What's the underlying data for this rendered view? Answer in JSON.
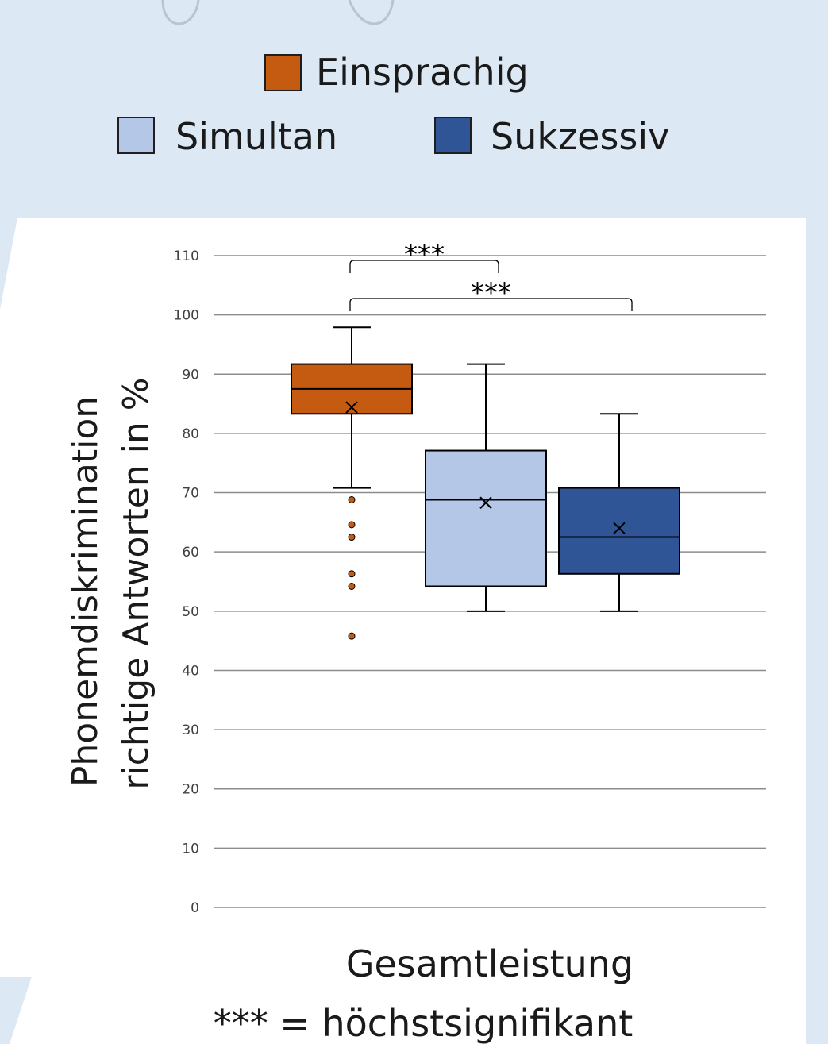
{
  "chart_data": {
    "type": "boxplot",
    "title": "",
    "xlabel": "Gesamtleistung",
    "ylabel_lines": [
      "Phonemdiskrimination",
      "richtige Antworten in %"
    ],
    "ylim": [
      0,
      110
    ],
    "yticks": [
      0,
      10,
      20,
      30,
      40,
      50,
      60,
      70,
      80,
      90,
      100,
      110
    ],
    "grid": true,
    "legend_position": "top",
    "footnote": "*** = höchstsignifikant",
    "series": [
      {
        "name": "Einsprachig",
        "color": "#c55a11",
        "whisker_low": 70.8,
        "q1": 83.3,
        "median": 87.5,
        "q3": 91.7,
        "whisker_high": 97.9,
        "mean": 84.4,
        "outliers": [
          68.8,
          64.6,
          62.5,
          56.3,
          54.2,
          45.8
        ]
      },
      {
        "name": "Simultan",
        "color": "#b4c7e7",
        "whisker_low": 50.0,
        "q1": 54.2,
        "median": 68.8,
        "q3": 77.1,
        "whisker_high": 91.7,
        "mean": 68.3,
        "outliers": []
      },
      {
        "name": "Sukzessiv",
        "color": "#2f5597",
        "whisker_low": 50.0,
        "q1": 56.3,
        "median": 62.5,
        "q3": 70.8,
        "whisker_high": 83.3,
        "mean": 64.0,
        "outliers": []
      }
    ],
    "significance": [
      {
        "from": "Einsprachig",
        "to": "Simultan",
        "label": "***"
      },
      {
        "from": "Einsprachig",
        "to": "Sukzessiv",
        "label": "***"
      }
    ]
  }
}
